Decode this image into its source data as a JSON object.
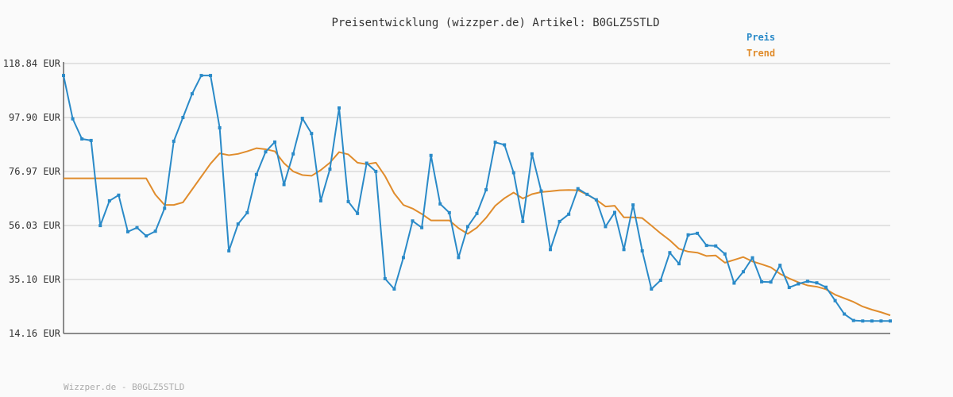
{
  "chart_data": {
    "type": "line",
    "title": "Preisentwicklung (wizzper.de) Artikel: B0GLZ5STLD",
    "xlabel": "",
    "ylabel": "",
    "y_ticks": [
      "118.84 EUR",
      "97.90 EUR",
      "76.97 EUR",
      "56.03 EUR",
      "35.10 EUR",
      "14.16 EUR"
    ],
    "ylim": [
      14.16,
      118.84
    ],
    "grid": true,
    "legend_position": "top-right",
    "footer": "Wizzper.de - B0GLZ5STLD",
    "series": [
      {
        "name": "Preis",
        "color": "#2a8ac8",
        "markers": true,
        "values": [
          114.2,
          97.4,
          89.6,
          89.0,
          56.0,
          65.6,
          67.8,
          53.6,
          55.2,
          52.0,
          53.8,
          62.7,
          88.7,
          97.9,
          107.1,
          114.2,
          114.2,
          93.9,
          46.2,
          56.6,
          61.0,
          75.8,
          84.6,
          88.4,
          71.9,
          83.8,
          97.6,
          91.7,
          65.6,
          77.9,
          101.6,
          65.3,
          60.7,
          80.2,
          77.0,
          35.4,
          31.4,
          43.6,
          57.8,
          55.2,
          83.2,
          64.4,
          61.0,
          43.6,
          55.6,
          60.7,
          69.9,
          88.3,
          87.3,
          76.5,
          57.6,
          83.8,
          69.4,
          46.7,
          57.6,
          60.4,
          70.3,
          68.1,
          66.0,
          55.6,
          61.1,
          46.7,
          64.0,
          46.2,
          31.4,
          34.8,
          45.5,
          41.2,
          52.4,
          53.0,
          48.3,
          48.1,
          45.0,
          33.7,
          38.1,
          43.5,
          34.2,
          34.1,
          40.6,
          32.0,
          33.4,
          34.4,
          33.8,
          32.1,
          26.9,
          21.7,
          19.2,
          19.0,
          19.0,
          19.0,
          19.0
        ]
      },
      {
        "name": "Trend",
        "color": "#e08c2c",
        "markers": false,
        "x": [
          0,
          9,
          10,
          11,
          12,
          13,
          14,
          15,
          16,
          17,
          18,
          19,
          20,
          21,
          22,
          23,
          24,
          25,
          26,
          27,
          28,
          29,
          30,
          31,
          32,
          33,
          34,
          35,
          36,
          37,
          38,
          39,
          40,
          41,
          42,
          43,
          44,
          45,
          46,
          47,
          48,
          49,
          50,
          51,
          52,
          53,
          54,
          55,
          56,
          57,
          58,
          59,
          60,
          61,
          62,
          63,
          64,
          65,
          66,
          67,
          68,
          69,
          70,
          71,
          72,
          73,
          74,
          75,
          76,
          77,
          78,
          79,
          80,
          81,
          82,
          83,
          84,
          85,
          86,
          87,
          88,
          89,
          90
        ],
        "values": [
          74.3,
          74.3,
          68.0,
          64.0,
          64.0,
          65.0,
          70.0,
          75.0,
          80.0,
          84.0,
          83.3,
          83.8,
          84.8,
          86.0,
          85.6,
          84.8,
          80.2,
          77.0,
          75.6,
          75.3,
          77.5,
          80.4,
          84.5,
          83.6,
          80.4,
          79.8,
          80.4,
          75.2,
          68.5,
          64.0,
          62.6,
          60.5,
          58.0,
          58.0,
          58.0,
          55.0,
          52.8,
          55.2,
          59.0,
          63.7,
          66.6,
          68.8,
          66.5,
          68.2,
          69.0,
          69.3,
          69.7,
          69.8,
          69.7,
          68.0,
          66.0,
          63.4,
          63.7,
          59.2,
          59.2,
          58.9,
          56.0,
          53.0,
          50.3,
          47.0,
          45.9,
          45.5,
          44.2,
          44.4,
          41.6,
          42.7,
          43.8,
          42.1,
          41.0,
          39.8,
          37.3,
          35.5,
          34.0,
          32.8,
          32.3,
          31.3,
          29.2,
          27.8,
          26.4,
          24.6,
          23.4,
          22.4,
          21.2
        ]
      }
    ]
  }
}
